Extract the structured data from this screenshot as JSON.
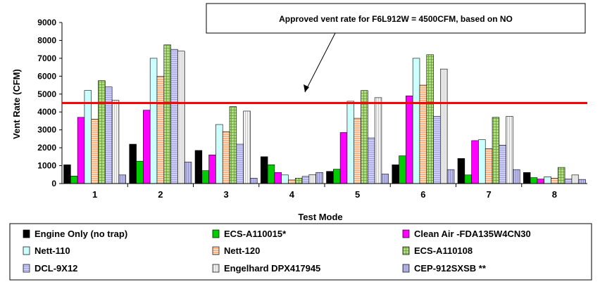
{
  "chart_data": {
    "type": "bar",
    "title": "",
    "xlabel": "Test Mode",
    "ylabel": "Vent Rate (CFM)",
    "ylim": [
      0,
      9000
    ],
    "yticks": [
      "0",
      "1000",
      "2000",
      "3000",
      "4000",
      "5000",
      "6000",
      "7000",
      "8000",
      "9000"
    ],
    "categories": [
      "1",
      "2",
      "3",
      "4",
      "5",
      "6",
      "7",
      "8"
    ],
    "grid": false,
    "legend_position": "bottom",
    "series": [
      {
        "name": "Engine Only (no trap)",
        "fill": "#000000",
        "pattern": "solid",
        "values": [
          1050,
          2200,
          1850,
          1500,
          680,
          1050,
          1400,
          620
        ]
      },
      {
        "name": "ECS-A110015*",
        "fill": "#00cc00",
        "pattern": "solid",
        "values": [
          420,
          1250,
          720,
          1050,
          800,
          1550,
          480,
          330
        ]
      },
      {
        "name": "Clean Air -FDA135W4CN30",
        "fill": "#ff00ff",
        "pattern": "solid",
        "values": [
          3700,
          4100,
          1600,
          620,
          2850,
          4900,
          2400,
          250
        ]
      },
      {
        "name": "Nett-110",
        "fill": "#ccffff",
        "pattern": "solid",
        "values": [
          5200,
          7000,
          3300,
          480,
          4600,
          7000,
          2450,
          380
        ]
      },
      {
        "name": "Nett-120",
        "fill": "#ffb380",
        "pattern": "hlines",
        "values": [
          3600,
          6000,
          2900,
          200,
          3650,
          5500,
          1950,
          300
        ]
      },
      {
        "name": "ECS-A110108",
        "fill": "#99cc66",
        "pattern": "grid",
        "values": [
          5750,
          7750,
          4300,
          300,
          5200,
          7200,
          3700,
          900
        ]
      },
      {
        "name": "DCL-9X12",
        "fill": "#ccccff",
        "pattern": "hlines",
        "values": [
          5400,
          7500,
          2200,
          400,
          2550,
          3750,
          2150,
          250
        ]
      },
      {
        "name": "Engelhard DPX417945",
        "fill": "#eeeeee",
        "pattern": "vlines",
        "values": [
          4650,
          7400,
          4050,
          500,
          4800,
          6400,
          3750,
          480
        ]
      },
      {
        "name": "CEP-912SXSB **",
        "fill": "#aaaadd",
        "pattern": "vlines",
        "values": [
          480,
          1200,
          300,
          620,
          530,
          780,
          780,
          230
        ]
      }
    ],
    "reference_line": {
      "value": 4500,
      "color": "#ff0000"
    },
    "annotation": {
      "text": "Approved vent rate for F6L912W = 4500CFM, based on NO"
    }
  }
}
